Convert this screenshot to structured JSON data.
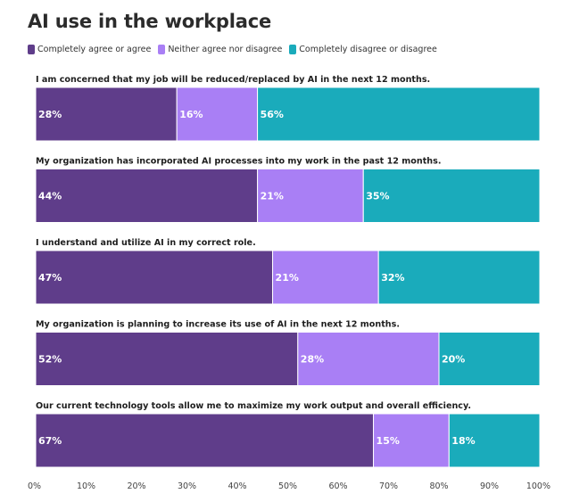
{
  "chart_data": {
    "type": "bar",
    "orientation": "horizontal",
    "stacked": true,
    "title": "AI use in the workplace",
    "categories": [
      "I am concerned that my job will be reduced/replaced by AI in the next 12 months.",
      "My organization has incorporated AI processes into my work in the past 12 months.",
      "I understand and utilize AI in my correct role.",
      "My organization is planning to increase its use of AI in the next 12 months.",
      "Our current technology tools allow me to maximize my work output and overall efficiency."
    ],
    "series": [
      {
        "name": "Completely agree or agree",
        "color": "#5f3d8a",
        "values": [
          28,
          44,
          47,
          52,
          67
        ]
      },
      {
        "name": "Neither agree nor disagree",
        "color": "#a97ff5",
        "values": [
          16,
          21,
          21,
          28,
          15
        ]
      },
      {
        "name": "Completely disagree or disagree",
        "color": "#1aabbb",
        "values": [
          56,
          35,
          32,
          20,
          18
        ]
      }
    ],
    "value_suffix": "%",
    "xlim": [
      0,
      100
    ],
    "xticks": [
      "0%",
      "10%",
      "20%",
      "30%",
      "40%",
      "50%",
      "60%",
      "70%",
      "80%",
      "90%",
      "100%"
    ],
    "legend_position": "top-left",
    "grid": false
  }
}
